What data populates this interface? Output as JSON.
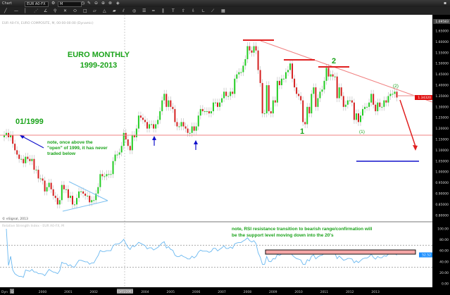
{
  "toolbar": {
    "window_title": "Chart",
    "symbol": "EUR A0-FX",
    "interval": "M",
    "icons": [
      "link-icon",
      "clock-icon",
      "pencil-icon",
      "zoom-out-icon",
      "zoom-in-icon",
      "refresh-icon",
      "tag-icon"
    ],
    "drawing_tools": [
      "line-tool",
      "horizontal-line-tool",
      "vertical-line-tool",
      "polyline-tool",
      "fib-tool",
      "pitchfork-tool",
      "gann-tool",
      "ellipse-tool",
      "rectangle-tool",
      "parallelogram-tool",
      "triangle-tool",
      "brush-tool",
      "channel-tool",
      "circle-tool",
      "lines-tool",
      "bars-tool",
      "cycle-tool",
      "text-tool",
      "arrow-up-tool",
      "arrow-down-tool",
      "angle-tool",
      "ruler-tool",
      "grid-tool"
    ]
  },
  "price_panel": {
    "header": "EUR A0-FX, EURO COMPOSITE, M, 00:00-00:00 (Dynamic)",
    "copyright": "© eSignal, 2013",
    "axis_top_label": "1.69583",
    "current_price_label": "1.34320",
    "current_price": 1.3432,
    "axis_ticks": [
      "1.65000",
      "1.60000",
      "1.55000",
      "1.50000",
      "1.45000",
      "1.40000",
      "1.35000",
      "1.30000",
      "1.25000",
      "1.20000",
      "1.15000",
      "1.10000",
      "1.05000",
      "1.00000",
      "0.95000",
      "0.90000",
      "0.85000",
      "0.80000"
    ]
  },
  "annotations": {
    "title_line1": "EURO MONTHLY",
    "title_line2": "1999-2013",
    "start_label": "01/1999",
    "note_lines": [
      "note, once above the",
      "\"open\" of 1999, it has never",
      "traded below"
    ],
    "wave_1": "1",
    "wave_2": "2",
    "wave_sub_1": "(1)",
    "wave_sub_2": "(2)",
    "rsi_note_line1": "note, RSI resistance transition to bearish range/confirmation will",
    "rsi_note_line2": "be the support level moving down into the 20's",
    "colors": {
      "text": "#1aa31a",
      "resistance": "#e02020",
      "support": "#f08080",
      "arrow_blue": "#1010cc",
      "triangle": "#7cc0f0",
      "rsi_box": "#f4a6a6"
    }
  },
  "rsi_panel": {
    "header": "Relative Strength Index - EUR A0-FX, M",
    "current_value_label": "52.52",
    "axis_ticks": [
      "100.00",
      "80.00",
      "60.00",
      "40.00",
      "20.00",
      "0.00"
    ],
    "guide_levels": [
      70,
      30
    ]
  },
  "time_axis": {
    "dyn_label": "Dyn",
    "q_label": "Q",
    "cursor_label": "03/01/2003",
    "year_labels": [
      "2000",
      "2001",
      "2002",
      "2004",
      "2005",
      "2006",
      "2007",
      "2008",
      "2009",
      "2010",
      "2011",
      "2012",
      "2013"
    ]
  },
  "chart_data": {
    "type": "candlestick",
    "symbol": "EUR A0-FX",
    "interval": "monthly",
    "start_month": "1998-09",
    "ylim": [
      0.78,
      1.7
    ],
    "closes": [
      1.17,
      1.18,
      1.16,
      1.17,
      1.13,
      1.1,
      1.08,
      1.06,
      1.06,
      1.04,
      1.07,
      1.06,
      1.05,
      1.06,
      1.01,
      1.01,
      0.97,
      0.97,
      0.96,
      0.91,
      0.93,
      0.95,
      0.92,
      0.89,
      0.88,
      0.85,
      0.87,
      0.94,
      0.92,
      0.92,
      0.88,
      0.89,
      0.85,
      0.85,
      0.88,
      0.91,
      0.91,
      0.9,
      0.89,
      0.89,
      0.86,
      0.87,
      0.87,
      0.9,
      0.93,
      0.99,
      0.98,
      0.98,
      0.99,
      0.99,
      0.99,
      1.05,
      1.08,
      1.08,
      1.09,
      1.12,
      1.18,
      1.15,
      1.12,
      1.1,
      1.17,
      1.16,
      1.2,
      1.26,
      1.25,
      1.24,
      1.23,
      1.2,
      1.22,
      1.22,
      1.2,
      1.22,
      1.24,
      1.28,
      1.33,
      1.36,
      1.3,
      1.33,
      1.3,
      1.29,
      1.23,
      1.21,
      1.21,
      1.23,
      1.21,
      1.2,
      1.18,
      1.18,
      1.21,
      1.19,
      1.21,
      1.26,
      1.29,
      1.28,
      1.28,
      1.28,
      1.27,
      1.28,
      1.32,
      1.32,
      1.3,
      1.32,
      1.34,
      1.37,
      1.35,
      1.35,
      1.37,
      1.36,
      1.43,
      1.45,
      1.46,
      1.46,
      1.49,
      1.52,
      1.58,
      1.56,
      1.55,
      1.58,
      1.56,
      1.47,
      1.41,
      1.27,
      1.27,
      1.4,
      1.28,
      1.27,
      1.33,
      1.32,
      1.42,
      1.4,
      1.43,
      1.43,
      1.46,
      1.47,
      1.5,
      1.43,
      1.39,
      1.36,
      1.35,
      1.33,
      1.23,
      1.22,
      1.3,
      1.27,
      1.36,
      1.39,
      1.3,
      1.34,
      1.37,
      1.38,
      1.42,
      1.48,
      1.44,
      1.45,
      1.44,
      1.44,
      1.34,
      1.39,
      1.35,
      1.3,
      1.31,
      1.33,
      1.33,
      1.32,
      1.24,
      1.27,
      1.23,
      1.26,
      1.29,
      1.3,
      1.3,
      1.32,
      1.36,
      1.31,
      1.28,
      1.32,
      1.3,
      1.3,
      1.33,
      1.32,
      1.35,
      1.36,
      1.36,
      1.37,
      1.3432
    ],
    "support_level": 1.17,
    "target_level": 1.05,
    "rsi_period": 14,
    "rsi_ylim": [
      0,
      100
    ]
  }
}
